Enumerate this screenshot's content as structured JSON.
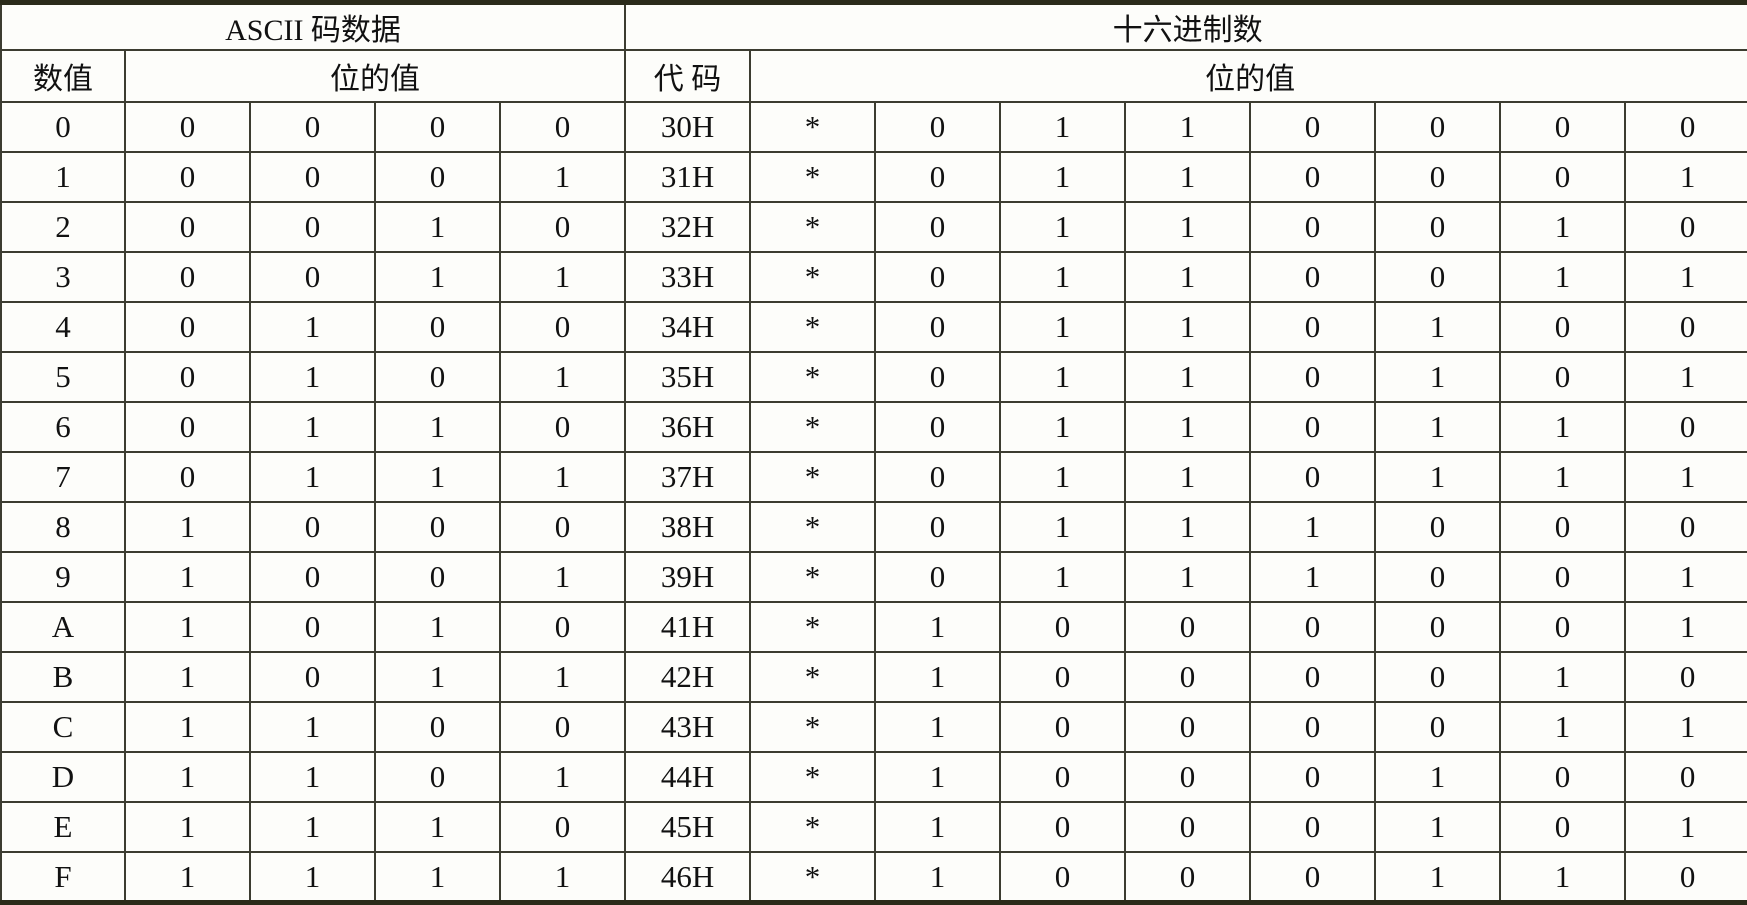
{
  "table": {
    "section_headers": {
      "ascii": "ASCII 码数据",
      "hex": "十六进制数"
    },
    "column_headers": {
      "value": "数值",
      "bits_left": "位的值",
      "code": "代 码",
      "bits_right": "位的值"
    },
    "rows": [
      {
        "value": "0",
        "ascii_bits": [
          "0",
          "0",
          "0",
          "0"
        ],
        "code": "30H",
        "hex_bits": [
          "*",
          "0",
          "1",
          "1",
          "0",
          "0",
          "0",
          "0"
        ]
      },
      {
        "value": "1",
        "ascii_bits": [
          "0",
          "0",
          "0",
          "1"
        ],
        "code": "31H",
        "hex_bits": [
          "*",
          "0",
          "1",
          "1",
          "0",
          "0",
          "0",
          "1"
        ]
      },
      {
        "value": "2",
        "ascii_bits": [
          "0",
          "0",
          "1",
          "0"
        ],
        "code": "32H",
        "hex_bits": [
          "*",
          "0",
          "1",
          "1",
          "0",
          "0",
          "1",
          "0"
        ]
      },
      {
        "value": "3",
        "ascii_bits": [
          "0",
          "0",
          "1",
          "1"
        ],
        "code": "33H",
        "hex_bits": [
          "*",
          "0",
          "1",
          "1",
          "0",
          "0",
          "1",
          "1"
        ]
      },
      {
        "value": "4",
        "ascii_bits": [
          "0",
          "1",
          "0",
          "0"
        ],
        "code": "34H",
        "hex_bits": [
          "*",
          "0",
          "1",
          "1",
          "0",
          "1",
          "0",
          "0"
        ]
      },
      {
        "value": "5",
        "ascii_bits": [
          "0",
          "1",
          "0",
          "1"
        ],
        "code": "35H",
        "hex_bits": [
          "*",
          "0",
          "1",
          "1",
          "0",
          "1",
          "0",
          "1"
        ]
      },
      {
        "value": "6",
        "ascii_bits": [
          "0",
          "1",
          "1",
          "0"
        ],
        "code": "36H",
        "hex_bits": [
          "*",
          "0",
          "1",
          "1",
          "0",
          "1",
          "1",
          "0"
        ]
      },
      {
        "value": "7",
        "ascii_bits": [
          "0",
          "1",
          "1",
          "1"
        ],
        "code": "37H",
        "hex_bits": [
          "*",
          "0",
          "1",
          "1",
          "0",
          "1",
          "1",
          "1"
        ]
      },
      {
        "value": "8",
        "ascii_bits": [
          "1",
          "0",
          "0",
          "0"
        ],
        "code": "38H",
        "hex_bits": [
          "*",
          "0",
          "1",
          "1",
          "1",
          "0",
          "0",
          "0"
        ]
      },
      {
        "value": "9",
        "ascii_bits": [
          "1",
          "0",
          "0",
          "1"
        ],
        "code": "39H",
        "hex_bits": [
          "*",
          "0",
          "1",
          "1",
          "1",
          "0",
          "0",
          "1"
        ]
      },
      {
        "value": "A",
        "ascii_bits": [
          "1",
          "0",
          "1",
          "0"
        ],
        "code": "41H",
        "hex_bits": [
          "*",
          "1",
          "0",
          "0",
          "0",
          "0",
          "0",
          "1"
        ]
      },
      {
        "value": "B",
        "ascii_bits": [
          "1",
          "0",
          "1",
          "1"
        ],
        "code": "42H",
        "hex_bits": [
          "*",
          "1",
          "0",
          "0",
          "0",
          "0",
          "1",
          "0"
        ]
      },
      {
        "value": "C",
        "ascii_bits": [
          "1",
          "1",
          "0",
          "0"
        ],
        "code": "43H",
        "hex_bits": [
          "*",
          "1",
          "0",
          "0",
          "0",
          "0",
          "1",
          "1"
        ]
      },
      {
        "value": "D",
        "ascii_bits": [
          "1",
          "1",
          "0",
          "1"
        ],
        "code": "44H",
        "hex_bits": [
          "*",
          "1",
          "0",
          "0",
          "0",
          "1",
          "0",
          "0"
        ]
      },
      {
        "value": "E",
        "ascii_bits": [
          "1",
          "1",
          "1",
          "0"
        ],
        "code": "45H",
        "hex_bits": [
          "*",
          "1",
          "0",
          "0",
          "0",
          "1",
          "0",
          "1"
        ]
      },
      {
        "value": "F",
        "ascii_bits": [
          "1",
          "1",
          "1",
          "1"
        ],
        "code": "46H",
        "hex_bits": [
          "*",
          "1",
          "0",
          "0",
          "0",
          "1",
          "1",
          "0"
        ]
      }
    ]
  },
  "colors": {
    "border_heavy": "#2b2b1a",
    "border_light": "#3c3c30",
    "background": "#fdfdfa",
    "text": "#111111"
  }
}
